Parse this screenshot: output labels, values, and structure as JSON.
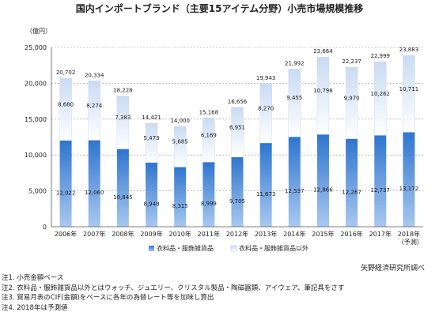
{
  "chart_data": {
    "type": "bar",
    "stacked": true,
    "title": "国内インポートブランド（主要15アイテム分野）小売市場規模推移",
    "ylabel": "（億円）",
    "ylim": [
      0,
      25000
    ],
    "yticks": [
      "0",
      "5,000",
      "10,000",
      "15,000",
      "20,000",
      "25,000"
    ],
    "categories": [
      "2006年",
      "2007年",
      "2008年",
      "2009年",
      "2010年",
      "2011年",
      "2012年",
      "2013年",
      "2014年",
      "2015年",
      "2016年",
      "2017年",
      "2018年"
    ],
    "category_sublabels": [
      "",
      "",
      "",
      "",
      "",
      "",
      "",
      "",
      "",
      "",
      "",
      "",
      "（予測）"
    ],
    "series": [
      {
        "name": "衣料品・服飾雑貨品",
        "values": [
          12022,
          12060,
          10845,
          8948,
          8315,
          8999,
          9705,
          11673,
          12537,
          12866,
          12267,
          12737,
          13172
        ],
        "labels": [
          "12,022",
          "12,060",
          "10,845",
          "8,948",
          "8,315",
          "8,999",
          "9,705",
          "11,673",
          "12,537",
          "12,866",
          "12,267",
          "12,737",
          "13,172"
        ]
      },
      {
        "name": "衣料品・服飾雑貨品以外",
        "values": [
          8680,
          8274,
          7383,
          5473,
          5685,
          6169,
          6951,
          8270,
          9455,
          10798,
          9970,
          10262,
          10711
        ],
        "labels": [
          "8,680",
          "8,274",
          "7,383",
          "5,473",
          "5,685",
          "6,169",
          "6,951",
          "8,270",
          "9,455",
          "10,798",
          "9,970",
          "10,262",
          "10,711"
        ]
      }
    ],
    "totals": [
      20702,
      20334,
      18228,
      14421,
      14000,
      15168,
      16656,
      19943,
      21992,
      23664,
      22237,
      22999,
      23883
    ],
    "total_labels": [
      "20,702",
      "20,334",
      "18,228",
      "14,421",
      "14,000",
      "15,168",
      "16,656",
      "19,943",
      "21,992",
      "23,664",
      "22,237",
      "22,999",
      "23,883"
    ],
    "colors": {
      "series1_top": "#2f75cf",
      "series1_bottom": "#a8c8f0",
      "series2_top": "#c9dbf3",
      "series2_bottom": "#ffffff",
      "grid": "#9a9a9a"
    },
    "grid": true,
    "legend_position": "bottom"
  },
  "source": "矢野経済研究所調べ",
  "notes": [
    "注1. 小売金額ベース",
    "注2. 衣料品・服飾雑貨品以外とはウォッチ、ジュエリー、クリスタル製品・陶磁器類、アイウェア、筆記具をさす",
    "注3. 貿易月表のCIF(金額)をベースに各年の為替レート等を加味し算出",
    "注4. 2018年は予測値"
  ]
}
